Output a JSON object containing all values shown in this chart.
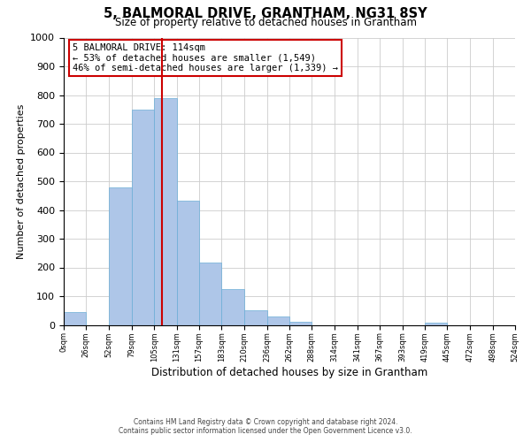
{
  "title": "5, BALMORAL DRIVE, GRANTHAM, NG31 8SY",
  "subtitle": "Size of property relative to detached houses in Grantham",
  "xlabel": "Distribution of detached houses by size in Grantham",
  "ylabel": "Number of detached properties",
  "bar_edges": [
    0,
    26,
    52,
    79,
    105,
    131,
    157,
    183,
    210,
    236,
    262,
    288,
    314,
    341,
    367,
    393,
    419,
    445,
    472,
    498,
    524
  ],
  "bar_heights": [
    45,
    0,
    480,
    748,
    790,
    433,
    217,
    125,
    52,
    28,
    12,
    0,
    0,
    0,
    0,
    0,
    8,
    0,
    0,
    0
  ],
  "bar_color": "#aec6e8",
  "bar_edgecolor": "#6baed6",
  "vline_x": 114,
  "vline_color": "#cc0000",
  "annotation_text": "5 BALMORAL DRIVE: 114sqm\n← 53% of detached houses are smaller (1,549)\n46% of semi-detached houses are larger (1,339) →",
  "annotation_box_edgecolor": "#cc0000",
  "annotation_box_facecolor": "#ffffff",
  "ylim": [
    0,
    1000
  ],
  "yticks": [
    0,
    100,
    200,
    300,
    400,
    500,
    600,
    700,
    800,
    900,
    1000
  ],
  "xtick_labels": [
    "0sqm",
    "26sqm",
    "52sqm",
    "79sqm",
    "105sqm",
    "131sqm",
    "157sqm",
    "183sqm",
    "210sqm",
    "236sqm",
    "262sqm",
    "288sqm",
    "314sqm",
    "341sqm",
    "367sqm",
    "393sqm",
    "419sqm",
    "445sqm",
    "472sqm",
    "498sqm",
    "524sqm"
  ],
  "footer_line1": "Contains HM Land Registry data © Crown copyright and database right 2024.",
  "footer_line2": "Contains public sector information licensed under the Open Government Licence v3.0.",
  "background_color": "#ffffff",
  "grid_color": "#cccccc"
}
